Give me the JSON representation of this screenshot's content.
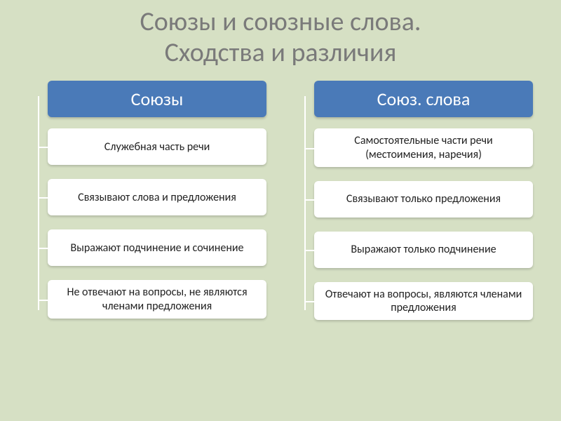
{
  "title_line1": "Союзы и союзные слова.",
  "title_line2": "Сходства и различия",
  "title_fontsize": 38,
  "title_color": "#7a7a7a",
  "background_color": "#d6e0c4",
  "header_bg": "#4a7ab8",
  "header_color": "#ffffff",
  "header_fontsize": 26,
  "item_bg": "#ffffff",
  "item_fontsize": 16,
  "item_text_color": "#222222",
  "connector_color": "#ffffff",
  "border_radius": 6,
  "columns": [
    {
      "header": "Союзы",
      "items": [
        "Служебная часть речи",
        "Связывают слова и предложения",
        "Выражают подчинение и сочинение",
        "Не отвечают на вопросы, не являются членами предложения"
      ]
    },
    {
      "header": "Союз. слова",
      "items": [
        "Самостоятельные части речи (местоимения, наречия)",
        "Связывают только предложения",
        "Выражают только подчинение",
        "Отвечают на вопросы, являются членами предложения"
      ]
    }
  ]
}
